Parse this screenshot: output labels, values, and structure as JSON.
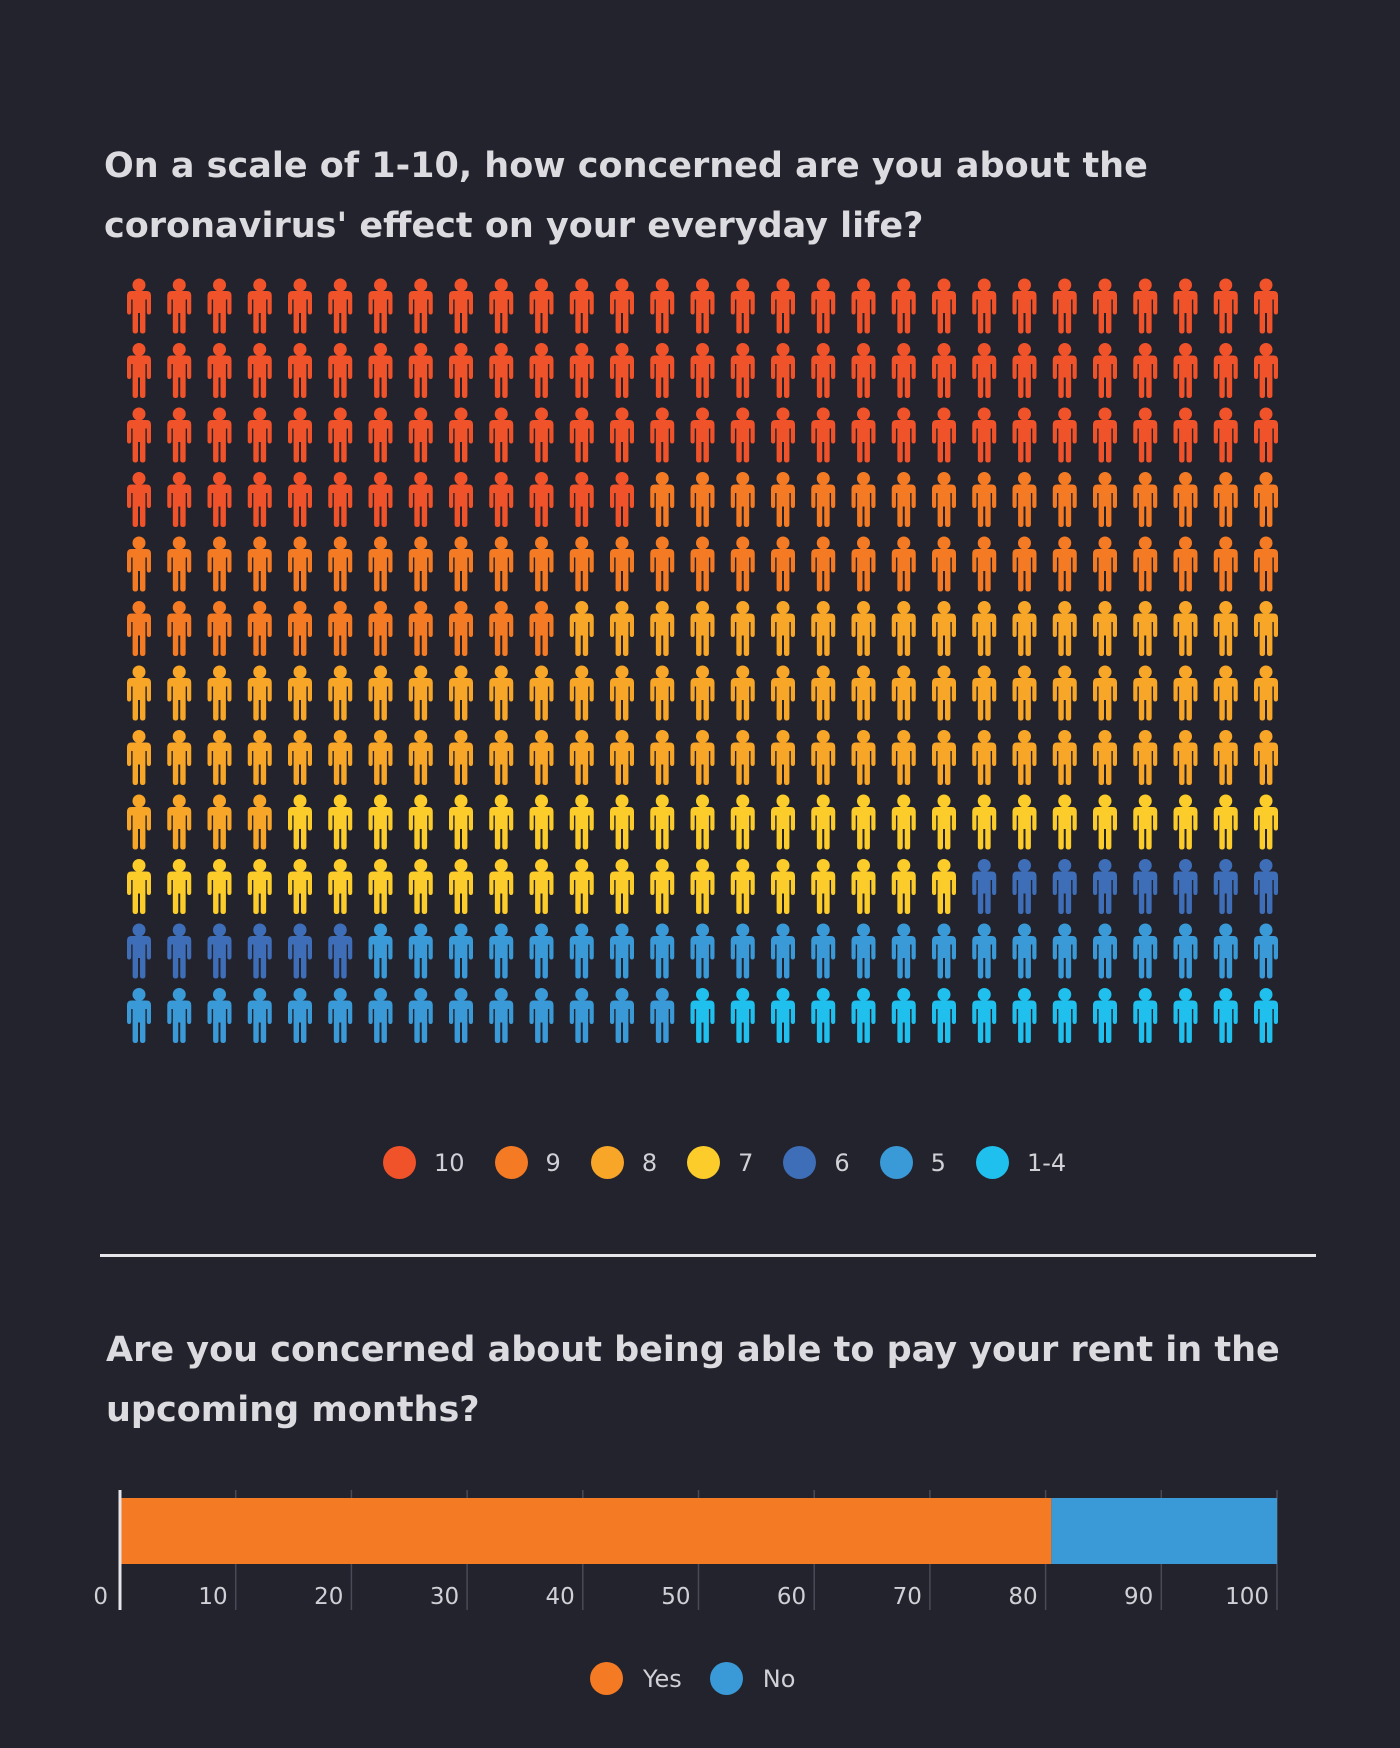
{
  "chart_data": [
    {
      "type": "pictogram",
      "title": "On a scale of 1-10, how concerned are you about the coronavirus' effect on your everyday life?",
      "grid": {
        "rows": 12,
        "cols": 29,
        "icon": "person-icon"
      },
      "categories": [
        "10",
        "9",
        "8",
        "7",
        "6",
        "5",
        "1-4"
      ],
      "values": [
        100,
        56,
        80,
        46,
        14,
        37,
        15
      ],
      "colors": [
        "#f0522a",
        "#f47a24",
        "#f8a628",
        "#fbcc2a",
        "#3e6eb8",
        "#3a9ad8",
        "#1fc0ee"
      ],
      "legend": [
        {
          "label": "10",
          "color": "#f0522a"
        },
        {
          "label": "9",
          "color": "#f47a24"
        },
        {
          "label": "8",
          "color": "#f8a628"
        },
        {
          "label": "7",
          "color": "#fbcc2a"
        },
        {
          "label": "6",
          "color": "#3e6eb8"
        },
        {
          "label": "5",
          "color": "#3a9ad8"
        },
        {
          "label": "1-4",
          "color": "#1fc0ee"
        }
      ]
    },
    {
      "type": "bar",
      "orientation": "horizontal-stacked",
      "title": "Are you concerned about being able to pay your rent in the upcoming months?",
      "series": [
        {
          "name": "Yes",
          "values": [
            80.5
          ],
          "color": "#f47a24"
        },
        {
          "name": "No",
          "values": [
            19.5
          ],
          "color": "#3a9ad8"
        }
      ],
      "xlim": [
        0,
        100
      ],
      "xticks": [
        "0",
        "10",
        "20",
        "30",
        "40",
        "50",
        "60",
        "70",
        "80",
        "90",
        "100"
      ],
      "grid": true,
      "legend_position": "bottom-center"
    }
  ],
  "divider_color": "#e6e6ea"
}
